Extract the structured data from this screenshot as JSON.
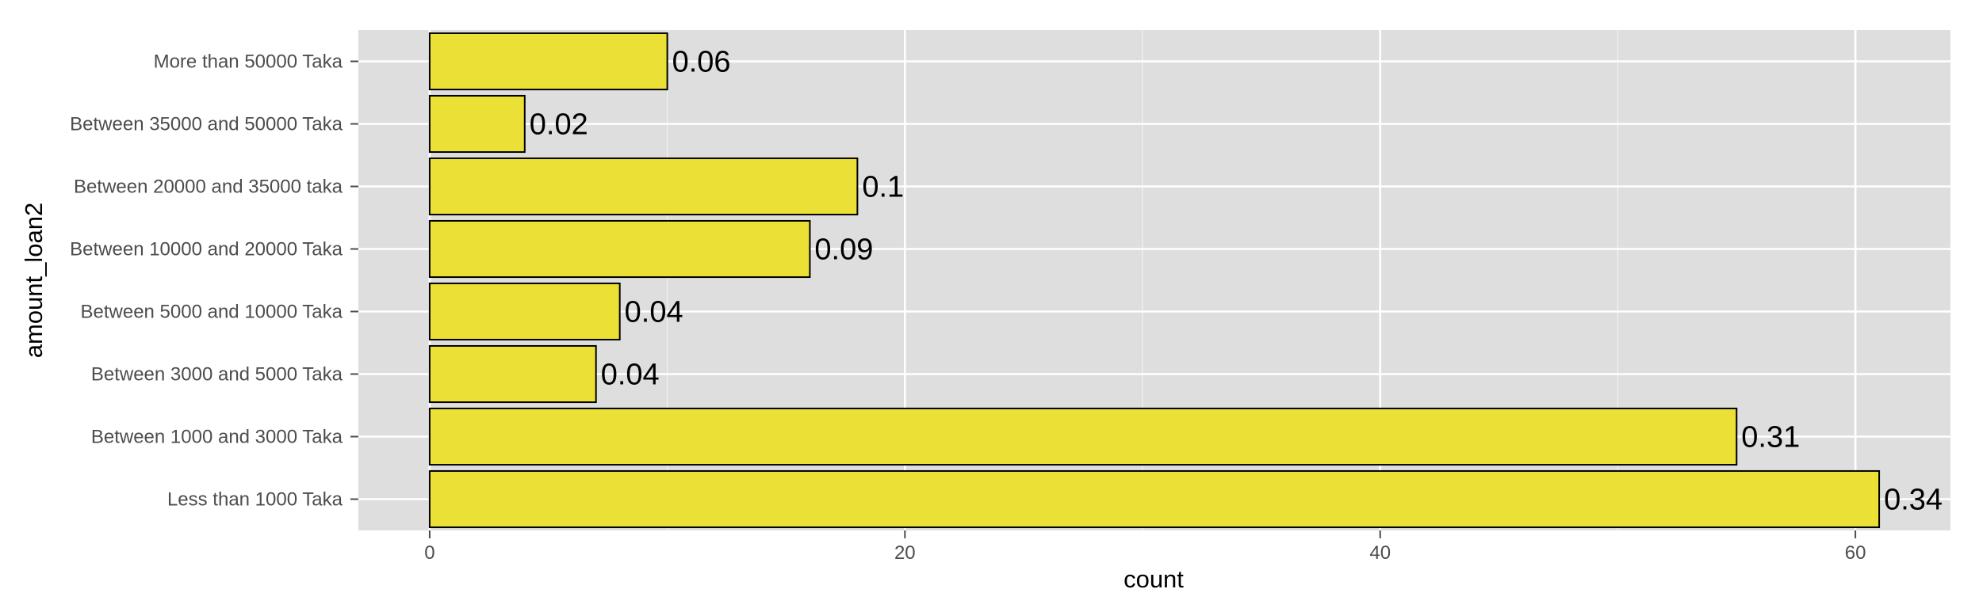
{
  "chart_data": {
    "type": "bar",
    "orientation": "horizontal",
    "categories": [
      "More than 50000 Taka",
      "Between 35000 and 50000 Taka",
      "Between 20000 and 35000 taka",
      "Between 10000 and 20000 Taka",
      "Between 5000 and 10000 Taka",
      "Between 3000 and 5000 Taka",
      "Between 1000 and 3000 Taka",
      "Less than 1000 Taka"
    ],
    "values": [
      10,
      4,
      18,
      16,
      8,
      7,
      55,
      61
    ],
    "labels": [
      "0.06",
      "0.02",
      "0.1",
      "0.09",
      "0.04",
      "0.04",
      "0.31",
      "0.34"
    ],
    "xlabel": "count",
    "ylabel": "amount_loan2",
    "xlim": [
      -3,
      64
    ],
    "xticks": [
      0,
      20,
      40,
      60
    ],
    "grid": true,
    "colors": {
      "bar_fill": "#ebe035",
      "bar_stroke": "#000000",
      "panel": "#dedede",
      "grid": "#ffffff"
    }
  }
}
